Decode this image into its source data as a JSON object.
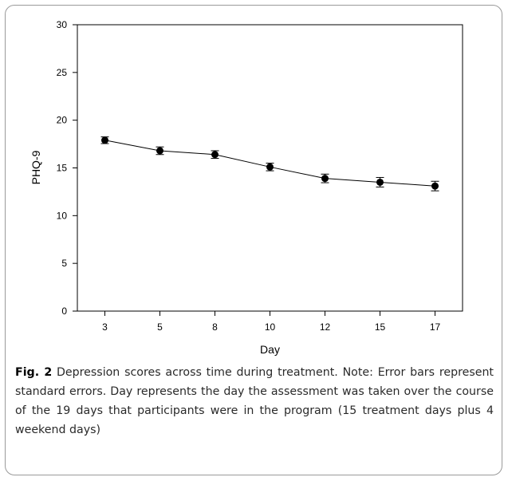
{
  "chart_data": {
    "type": "line",
    "title": "",
    "xlabel": "Day",
    "ylabel": "PHQ-9",
    "categories": [
      "3",
      "5",
      "8",
      "10",
      "12",
      "15",
      "17"
    ],
    "series": [
      {
        "values": [
          17.9,
          16.8,
          16.4,
          15.1,
          13.9,
          13.5,
          13.1
        ],
        "errors": [
          0.35,
          0.4,
          0.4,
          0.4,
          0.45,
          0.5,
          0.5
        ]
      }
    ],
    "ylim": [
      0,
      30
    ],
    "yticks": [
      0,
      5,
      10,
      15,
      20,
      25,
      30
    ],
    "grid": false,
    "legend": "none"
  },
  "caption": {
    "label": "Fig. 2",
    "text": " Depression scores across time during treatment. Note: Error bars represent standard errors. Day represents the day the assessment was taken over the course of the 19 days that participants were in the program (15 treatment days plus 4 weekend days)"
  }
}
